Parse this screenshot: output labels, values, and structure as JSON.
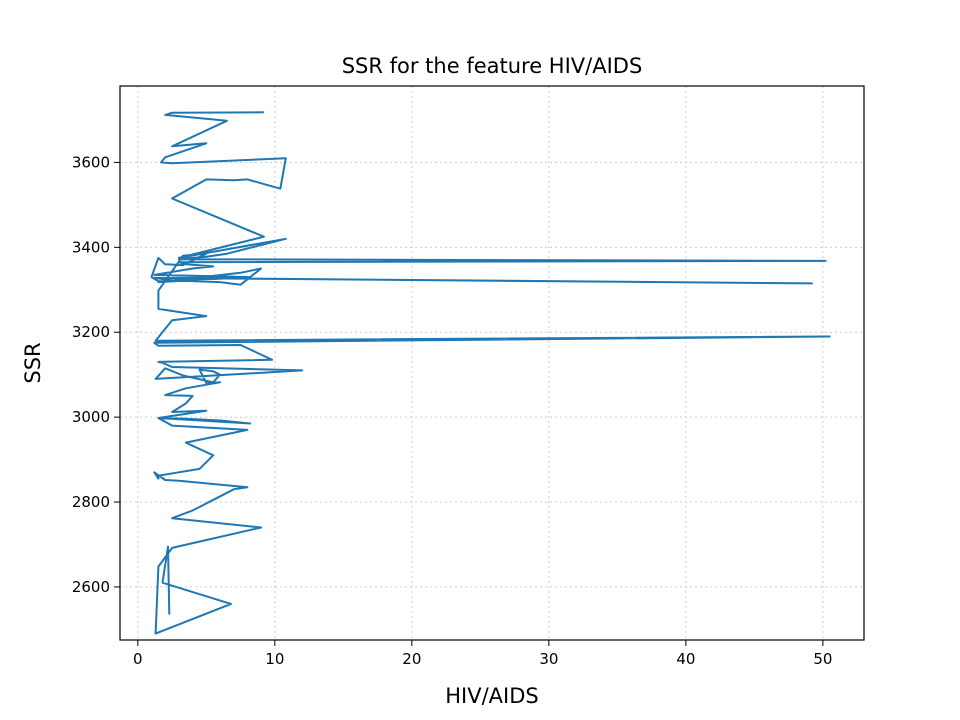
{
  "chart_data": {
    "type": "line",
    "title": "SSR for the feature HIV/AIDS",
    "xlabel": "HIV/AIDS",
    "ylabel": "SSR",
    "xlim": [
      -1.3,
      53.0
    ],
    "ylim": [
      2475,
      3780
    ],
    "xticks": [
      0,
      10,
      20,
      30,
      40,
      50
    ],
    "yticks": [
      2600,
      2800,
      3000,
      3200,
      3400,
      3600
    ],
    "grid": true,
    "line_color": "#1f77b4",
    "series": [
      {
        "x": [
          9.2,
          2.5,
          2.0,
          6.5,
          2.5,
          5.0,
          2.0,
          1.7,
          2.5,
          10.8,
          10.4,
          8.0,
          7.0,
          5.0,
          2.5,
          9.2,
          3.0,
          10.8,
          6.5,
          5.0,
          4.0,
          3.0,
          50.2,
          3.0,
          3.3,
          3.5,
          5.5,
          4.0,
          1.2,
          8.0,
          2.5,
          49.2,
          1.2,
          2.5,
          6.0,
          7.5,
          9.0,
          7.5,
          1.5,
          8.2,
          1.5,
          1.0,
          1.5,
          2.0,
          3.3,
          5.0,
          3.3,
          1.5,
          1.5,
          5.0,
          2.5,
          1.3,
          50.5,
          1.2,
          1.5,
          7.5,
          9.8,
          1.5,
          1.8,
          2.5,
          12.0,
          1.3,
          2.0,
          3.3,
          5.5,
          6.0,
          5.5,
          4.5,
          5.0,
          6.0,
          3.5,
          2.0,
          4.0,
          3.5,
          2.5,
          5.0,
          1.5,
          3.5,
          6.0,
          8.2,
          1.5,
          2.5,
          8.0,
          3.5,
          5.5,
          4.5,
          1.5,
          1.5,
          1.2,
          2.0,
          3.0,
          8.0,
          7.0,
          5.8,
          4.0,
          2.5,
          9.0,
          2.5,
          1.5,
          1.3,
          6.8,
          1.8,
          2.2,
          2.3
        ],
        "y": [
          3718,
          3717,
          3712,
          3698,
          3638,
          3645,
          3612,
          3600,
          3598,
          3610,
          3538,
          3560,
          3558,
          3560,
          3515,
          3425,
          3375,
          3420,
          3385,
          3378,
          3375,
          3372,
          3368,
          3365,
          3362,
          3360,
          3355,
          3350,
          3335,
          3330,
          3328,
          3315,
          3328,
          3322,
          3318,
          3312,
          3350,
          3340,
          3318,
          3330,
          3320,
          3330,
          3375,
          3360,
          3358,
          3385,
          3380,
          3298,
          3255,
          3238,
          3228,
          3180,
          3190,
          3175,
          3168,
          3170,
          3135,
          3130,
          3128,
          3118,
          3110,
          3090,
          3115,
          3098,
          3082,
          3100,
          3108,
          3112,
          3080,
          3082,
          3068,
          3052,
          3050,
          3032,
          3012,
          3015,
          2998,
          2996,
          2992,
          2985,
          2998,
          2980,
          2970,
          2940,
          2910,
          2878,
          2862,
          2855,
          2870,
          2852,
          2850,
          2835,
          2830,
          2810,
          2780,
          2762,
          2740,
          2692,
          2648,
          2490,
          2560,
          2610,
          2695,
          2535
        ]
      }
    ]
  }
}
